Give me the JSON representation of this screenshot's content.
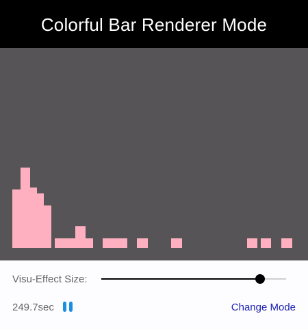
{
  "window": {
    "title": "Colorful Bar Renderer Mode"
  },
  "visualizer": {
    "background": "#565457",
    "bar_color": "#ffb0c0",
    "column_levels": [
      0,
      6,
      6,
      6,
      6,
      6,
      6,
      6,
      6,
      6,
      6,
      6,
      6,
      6,
      6,
      6,
      6,
      6,
      6,
      6,
      6,
      6,
      6,
      6,
      6,
      6,
      6,
      6,
      6,
      6,
      6,
      6,
      6,
      6,
      6,
      6,
      6,
      6,
      6,
      6,
      6,
      6,
      6,
      6,
      6,
      6,
      6,
      6,
      6,
      6,
      6,
      6,
      6,
      6,
      6,
      6,
      6,
      6,
      6,
      6,
      6,
      6,
      6,
      6,
      6,
      6,
      6,
      6,
      6,
      6,
      6,
      6,
      6,
      6,
      6,
      6,
      6,
      6,
      6,
      6,
      6,
      6,
      6,
      6,
      6,
      6,
      6,
      6,
      6,
      6,
      6,
      6,
      6,
      6,
      6,
      6,
      6,
      6,
      6,
      6
    ],
    "levels_max": 12
  },
  "controls": {
    "effect_size_label": "Visu-Effect Size:",
    "effect_size_value": 0.86,
    "elapsed": "249.7sec",
    "pause_icon": "pause-icon",
    "change_mode_label": "Change Mode",
    "accent_color": "#1a8fe0",
    "link_color": "#1a1fb0"
  }
}
